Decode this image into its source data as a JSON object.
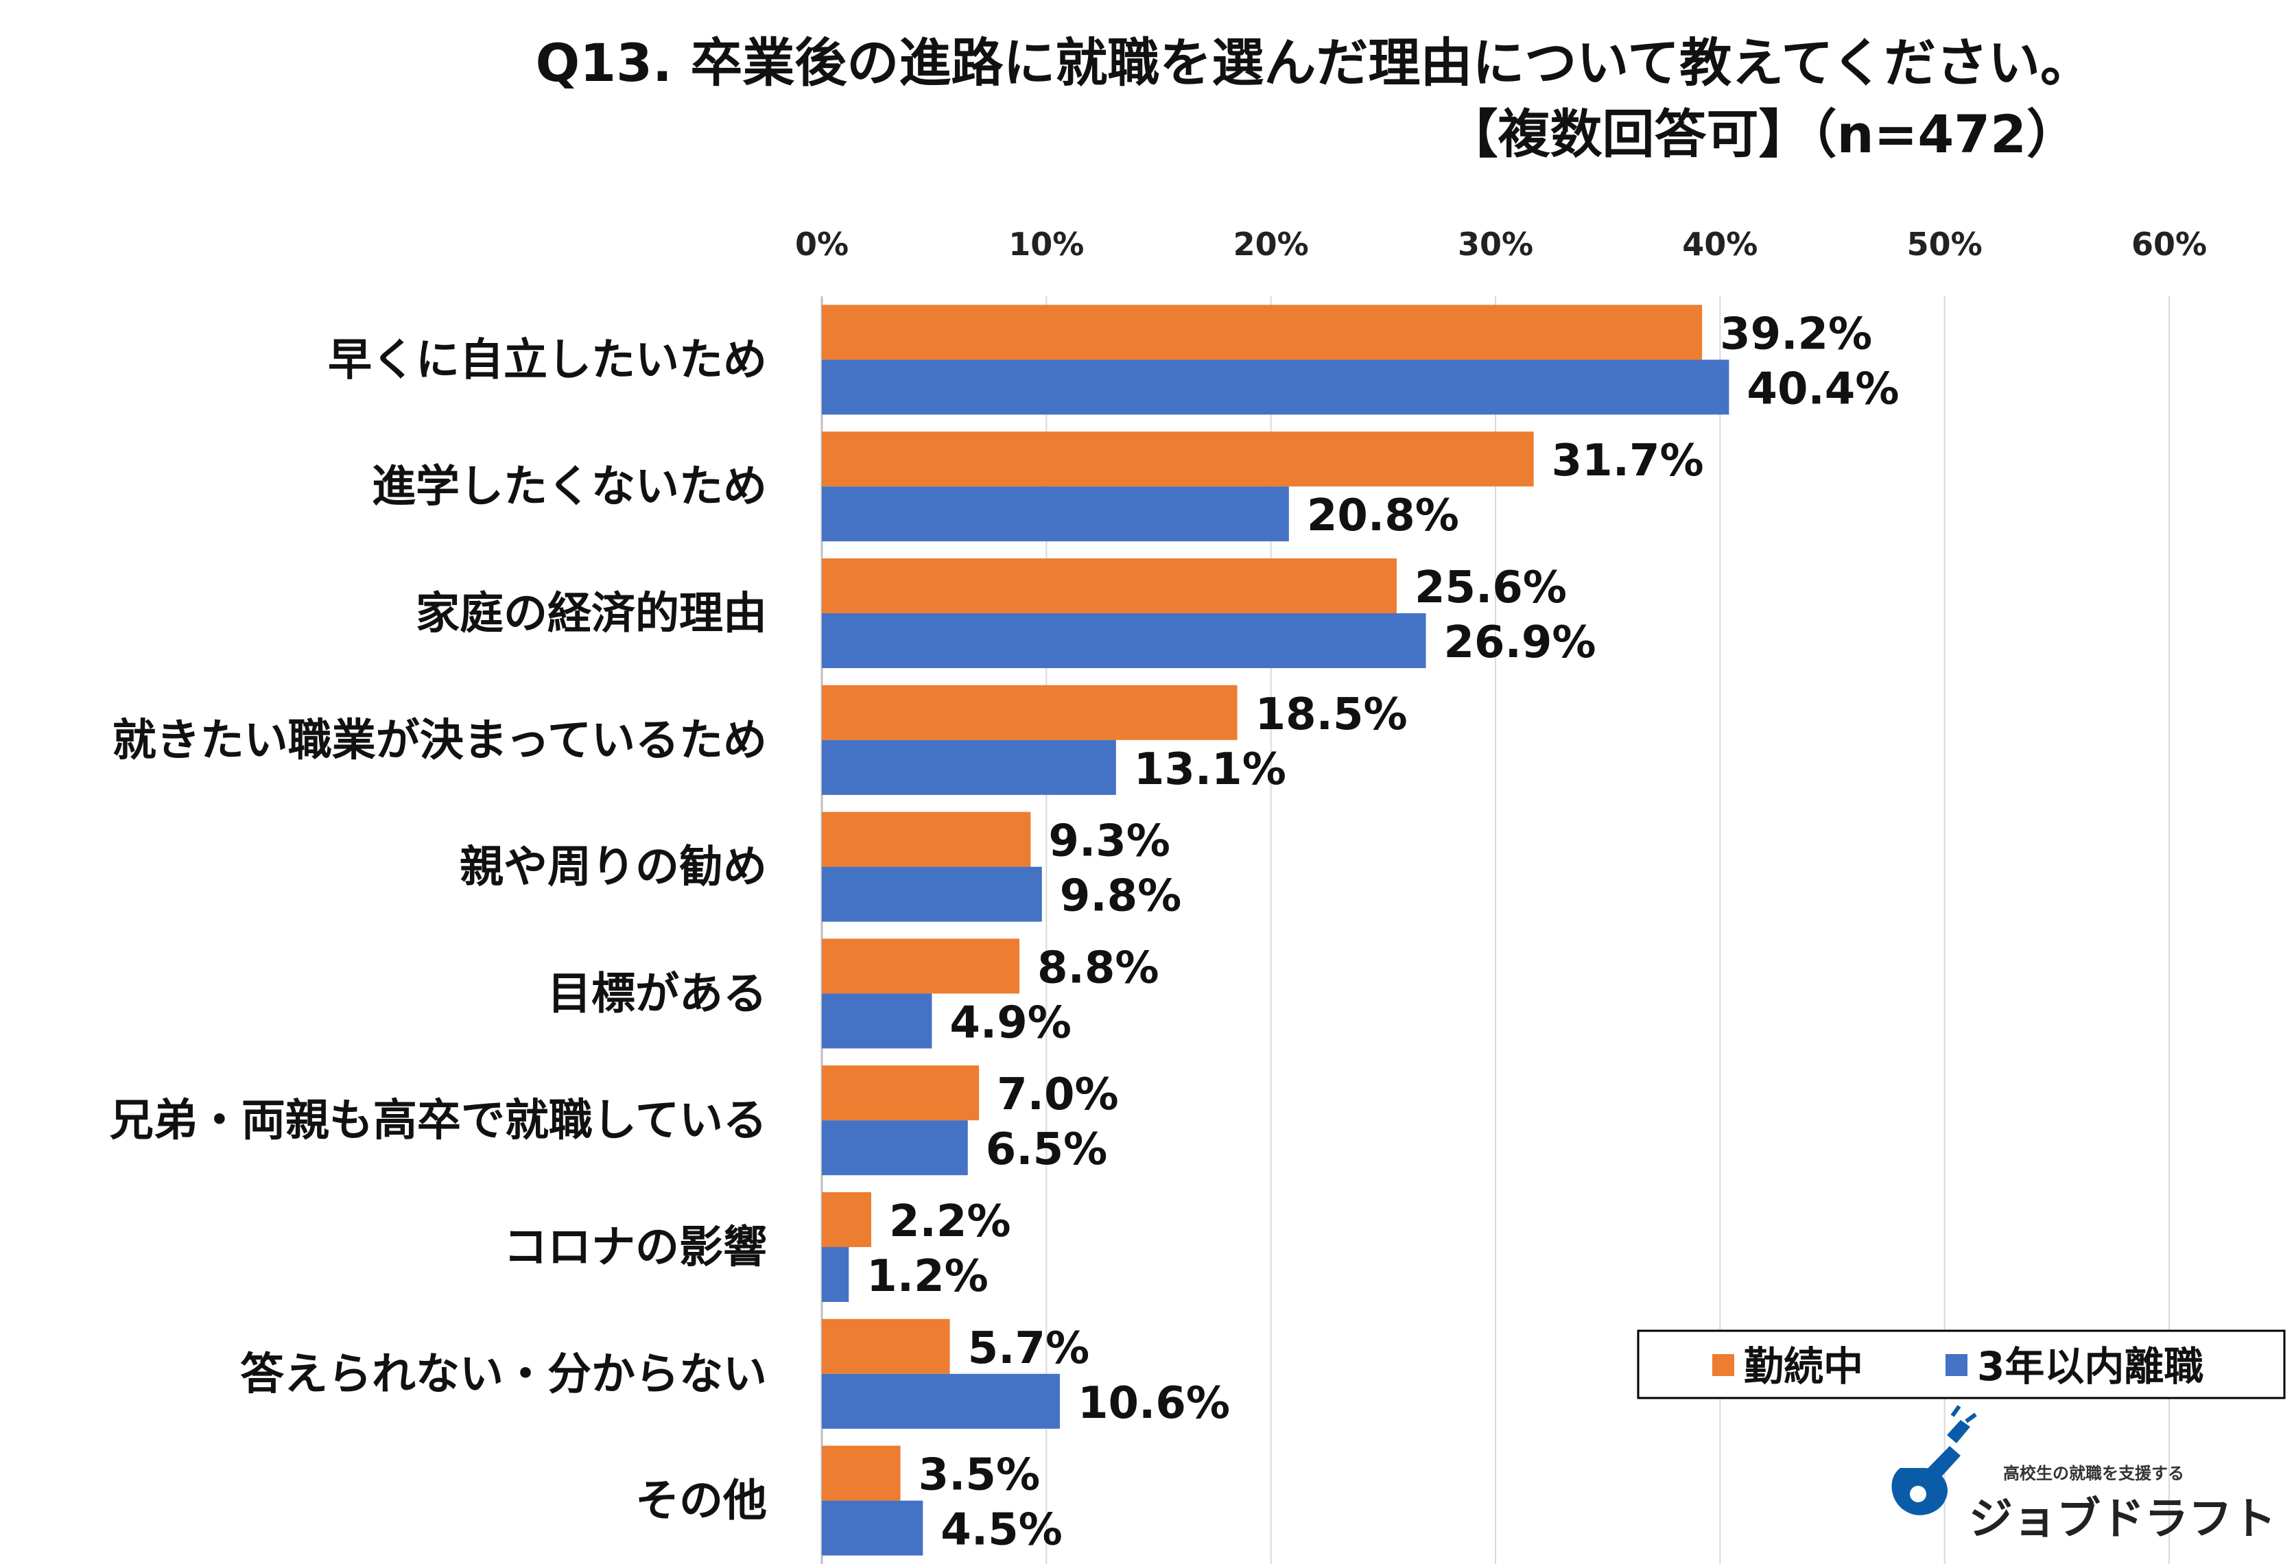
{
  "chart_data": {
    "type": "bar",
    "orientation": "horizontal",
    "title": "Q13. 卒業後の進路に就職を選んだ理由について教えてください。",
    "subtitle": "【複数回答可】（n=472）",
    "categories": [
      "早くに自立したいため",
      "進学したくないため",
      "家庭の経済的理由",
      "就きたい職業が決まっているため",
      "親や周りの勧め",
      "目標がある",
      "兄弟・両親も高卒で就職している",
      "コロナの影響",
      "答えられない・分からない",
      "その他"
    ],
    "series": [
      {
        "name": "勤続中",
        "color": "#ED7D31",
        "values": [
          39.2,
          31.7,
          25.6,
          18.5,
          9.3,
          8.8,
          7.0,
          2.2,
          5.7,
          3.5
        ],
        "labels": [
          "39.2%",
          "31.7%",
          "25.6%",
          "18.5%",
          "9.3%",
          "8.8%",
          "7.0%",
          "2.2%",
          "5.7%",
          "3.5%"
        ]
      },
      {
        "name": "3年以内離職",
        "color": "#4472C4",
        "values": [
          40.4,
          20.8,
          26.9,
          13.1,
          9.8,
          4.9,
          6.5,
          1.2,
          10.6,
          4.5
        ],
        "labels": [
          "40.4%",
          "20.8%",
          "26.9%",
          "13.1%",
          "9.8%",
          "4.9%",
          "6.5%",
          "1.2%",
          "10.6%",
          "4.5%"
        ]
      }
    ],
    "xlim": [
      0,
      60
    ],
    "xticks": [
      0,
      10,
      20,
      30,
      40,
      50,
      60
    ],
    "xtick_labels": [
      "0%",
      "10%",
      "20%",
      "30%",
      "40%",
      "50%",
      "60%"
    ],
    "xaxis_position": "top",
    "grid": true,
    "gridline_color": "#D9D9D9",
    "legend_position": "bottom-right",
    "legend_border_color": "#000000"
  },
  "logo": {
    "tagline": "高校生の就職を支援する",
    "name": "ジョブドラフト",
    "color": "#0B5CA8"
  }
}
